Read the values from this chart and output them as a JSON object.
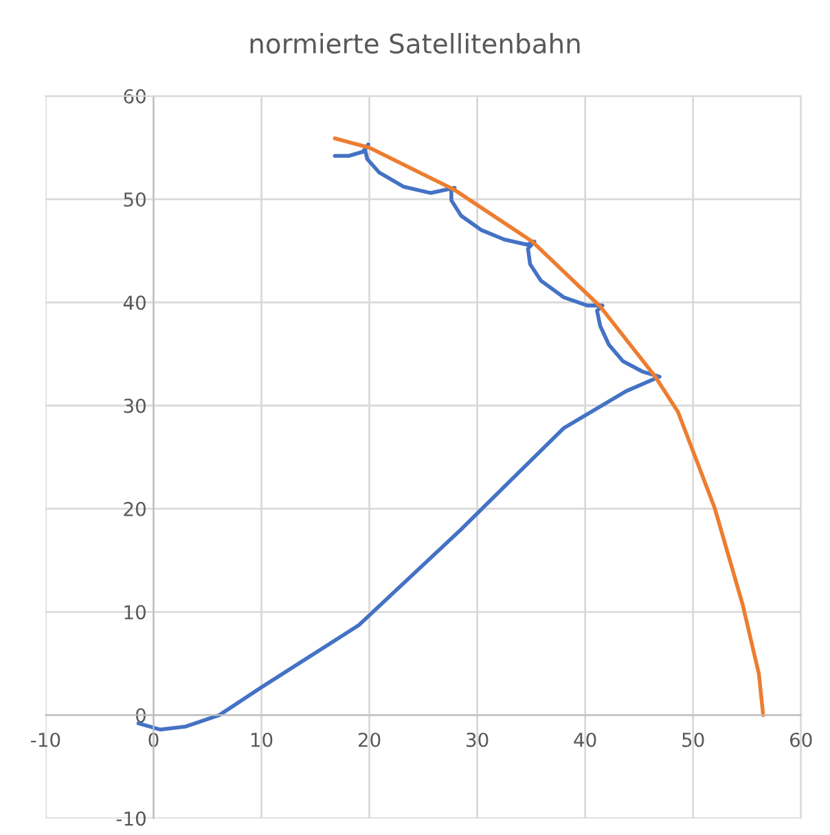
{
  "chart_data": {
    "type": "line",
    "title": "normierte Satellitenbahn",
    "series": [
      {
        "color": "#4472c4",
        "x": [
          -1.4,
          0.6,
          3.0,
          6.1,
          10.0,
          19.0,
          28.5,
          38.0,
          43.8,
          46.9,
          45.3,
          43.5,
          42.2,
          41.4,
          41.1,
          41.6,
          40.2,
          38.0,
          35.9,
          34.9,
          34.7,
          35.3,
          34.6,
          32.5,
          30.4,
          28.5,
          27.6,
          27.6,
          27.9,
          25.7,
          23.2,
          20.9,
          19.8,
          19.6,
          19.9,
          19.4,
          18.1,
          16.8
        ],
        "values": [
          -0.8,
          -1.4,
          -1.1,
          0.0,
          2.7,
          8.7,
          18.0,
          27.8,
          31.4,
          32.8,
          33.3,
          34.3,
          35.9,
          37.7,
          39.2,
          39.7,
          39.7,
          40.5,
          42.1,
          43.7,
          45.2,
          45.9,
          45.6,
          46.1,
          47.0,
          48.4,
          49.9,
          50.8,
          51.1,
          50.6,
          51.2,
          52.6,
          53.9,
          54.8,
          55.3,
          54.6,
          54.2,
          54.2
        ]
      },
      {
        "color": "#ed7d31",
        "x": [
          16.8,
          20.0,
          27.9,
          35.1,
          41.4,
          46.5,
          48.6,
          52.0,
          54.6,
          56.1,
          56.5
        ],
        "values": [
          55.9,
          55.0,
          50.9,
          45.9,
          39.6,
          32.8,
          29.4,
          20.1,
          10.7,
          4.0,
          0.0
        ]
      }
    ],
    "xlim": [
      -10,
      60
    ],
    "xticks": [
      -10,
      0,
      10,
      20,
      30,
      40,
      50,
      60
    ],
    "ylim": [
      -10,
      60
    ],
    "yticks": [
      -10,
      0,
      10,
      20,
      30,
      40,
      50,
      60
    ],
    "grid": true,
    "marker": "none",
    "line_style": "solid"
  }
}
